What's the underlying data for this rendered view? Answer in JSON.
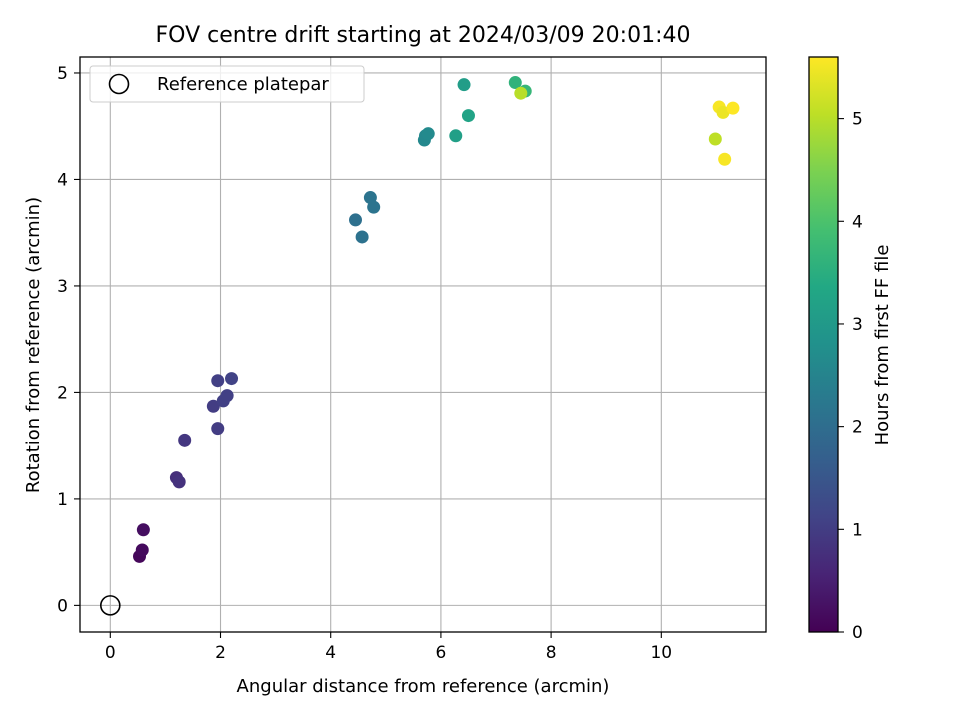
{
  "chart_data": {
    "type": "scatter",
    "title": "FOV centre drift starting at 2024/03/09 20:01:40",
    "xlabel": "Angular distance from reference (arcmin)",
    "ylabel": "Rotation from reference (arcmin)",
    "colorbar_label": "Hours from first FF file",
    "xlim": [
      -0.55,
      11.9
    ],
    "ylim": [
      -0.25,
      5.15
    ],
    "clim": [
      0,
      5.6
    ],
    "colormap": "viridis",
    "grid": true,
    "legend_position": "upper-left",
    "x_ticks": [
      0,
      2,
      4,
      6,
      8,
      10
    ],
    "x_tick_labels": [
      "0",
      "2",
      "4",
      "6",
      "8",
      "10"
    ],
    "y_ticks": [
      0,
      1,
      2,
      3,
      4,
      5
    ],
    "y_tick_labels": [
      "0",
      "1",
      "2",
      "3",
      "4",
      "5"
    ],
    "colorbar_ticks": [
      0,
      1,
      2,
      3,
      4,
      5
    ],
    "colorbar_tick_labels": [
      "0",
      "1",
      "2",
      "3",
      "4",
      "5"
    ],
    "reference": {
      "name": "Reference platepar",
      "x": 0,
      "y": 0,
      "marker": "open-circle",
      "color": "#000000"
    },
    "points": [
      {
        "x": 0.53,
        "y": 0.46,
        "t": 0.1
      },
      {
        "x": 0.58,
        "y": 0.52,
        "t": 0.15
      },
      {
        "x": 0.6,
        "y": 0.71,
        "t": 0.2
      },
      {
        "x": 1.2,
        "y": 1.2,
        "t": 0.75
      },
      {
        "x": 1.25,
        "y": 1.16,
        "t": 0.8
      },
      {
        "x": 1.35,
        "y": 1.55,
        "t": 0.9
      },
      {
        "x": 1.87,
        "y": 1.87,
        "t": 1.0
      },
      {
        "x": 1.95,
        "y": 1.66,
        "t": 1.0
      },
      {
        "x": 1.95,
        "y": 2.11,
        "t": 1.05
      },
      {
        "x": 2.05,
        "y": 1.92,
        "t": 1.05
      },
      {
        "x": 2.12,
        "y": 1.97,
        "t": 1.05
      },
      {
        "x": 2.2,
        "y": 2.13,
        "t": 1.1
      },
      {
        "x": 4.45,
        "y": 3.62,
        "t": 2.05
      },
      {
        "x": 4.57,
        "y": 3.46,
        "t": 2.1
      },
      {
        "x": 4.72,
        "y": 3.83,
        "t": 2.15
      },
      {
        "x": 4.78,
        "y": 3.74,
        "t": 2.15
      },
      {
        "x": 5.7,
        "y": 4.37,
        "t": 2.6
      },
      {
        "x": 5.72,
        "y": 4.41,
        "t": 2.6
      },
      {
        "x": 5.77,
        "y": 4.43,
        "t": 2.65
      },
      {
        "x": 6.27,
        "y": 4.41,
        "t": 3.15
      },
      {
        "x": 6.42,
        "y": 4.89,
        "t": 3.1
      },
      {
        "x": 6.5,
        "y": 4.6,
        "t": 3.25
      },
      {
        "x": 7.35,
        "y": 4.91,
        "t": 3.6
      },
      {
        "x": 7.53,
        "y": 4.83,
        "t": 3.7
      },
      {
        "x": 7.45,
        "y": 4.81,
        "t": 5.0
      },
      {
        "x": 10.98,
        "y": 4.38,
        "t": 5.05
      },
      {
        "x": 11.05,
        "y": 4.68,
        "t": 5.55
      },
      {
        "x": 11.12,
        "y": 4.63,
        "t": 5.45
      },
      {
        "x": 11.15,
        "y": 4.19,
        "t": 5.55
      },
      {
        "x": 11.3,
        "y": 4.67,
        "t": 5.6
      }
    ]
  }
}
